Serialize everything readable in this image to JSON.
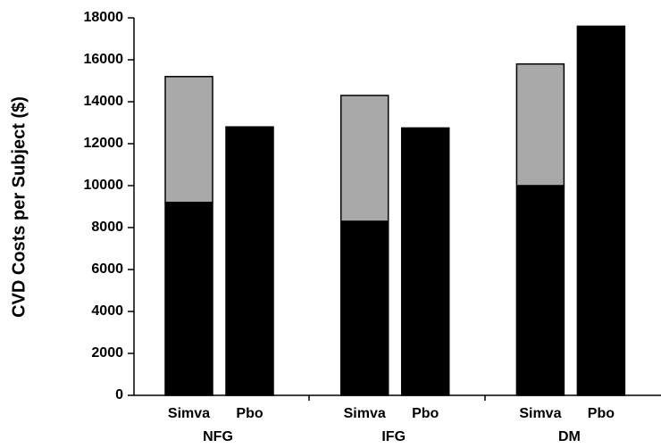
{
  "chart_data": {
    "type": "stacked_bar",
    "y_label": "CVD Costs per Subject ($)",
    "groups": [
      "NFG",
      "IFG",
      "DM"
    ],
    "categories": [
      "Simva",
      "Pbo",
      "Simva",
      "Pbo",
      "Simva",
      "Pbo"
    ],
    "series": [
      {
        "color": "#000000",
        "values": [
          9200,
          12800,
          8300,
          12750,
          10000,
          17600
        ]
      },
      {
        "color": "#a9a9a9",
        "values": [
          6000,
          null,
          6000,
          null,
          5800,
          null
        ]
      }
    ],
    "ylim": [
      0,
      18000
    ],
    "yticks": [
      0,
      2000,
      4000,
      6000,
      8000,
      10000,
      12000,
      14000,
      16000,
      18000
    ]
  }
}
